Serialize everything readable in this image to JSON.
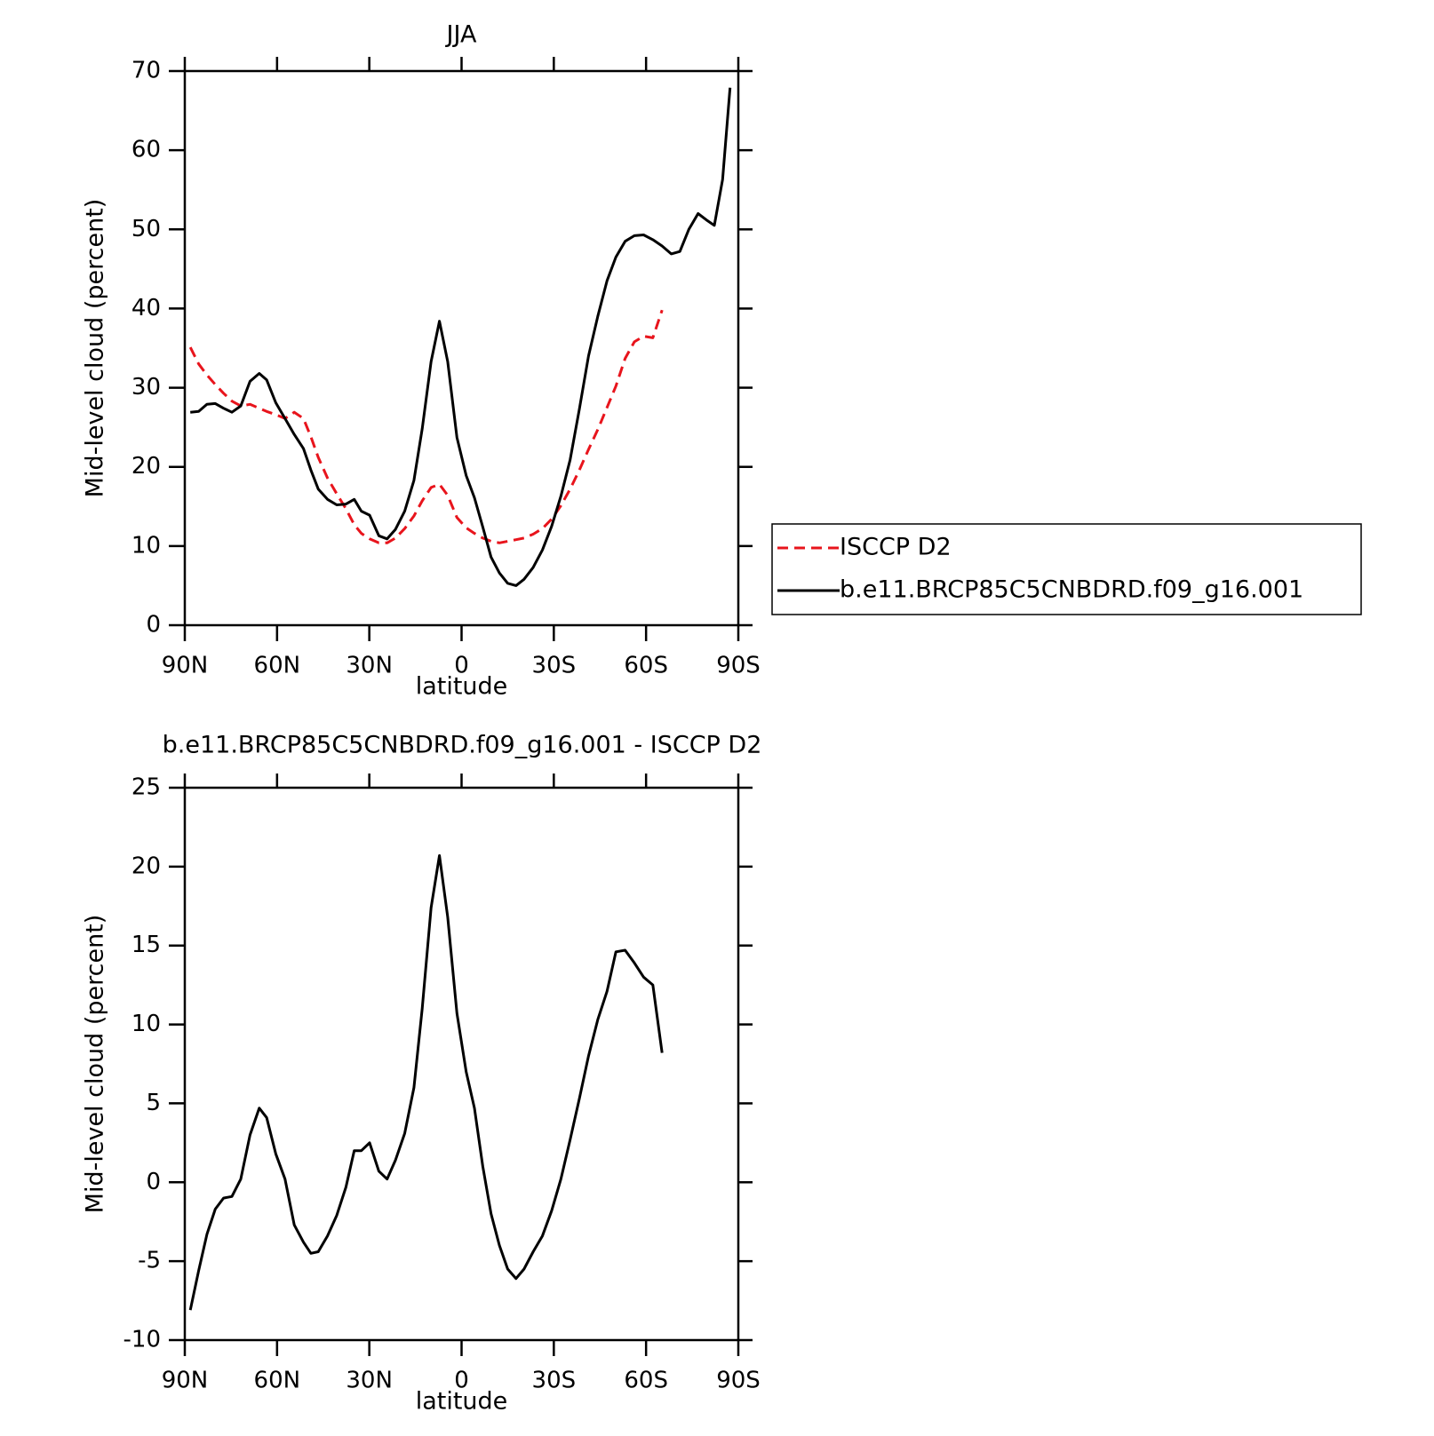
{
  "chart_data": [
    {
      "type": "line",
      "title": "JJA",
      "xlabel": "latitude",
      "ylabel": "Mid-level cloud (percent)",
      "x": [
        88.2,
        85.5,
        82.8,
        80.1,
        77.4,
        74.7,
        71.8,
        68.8,
        65.8,
        63.4,
        60.4,
        57.4,
        54.4,
        51.4,
        49.0,
        46.6,
        43.6,
        40.6,
        37.6,
        34.9,
        32.6,
        29.9,
        26.9,
        24.2,
        21.5,
        18.5,
        15.5,
        12.8,
        9.9,
        7.2,
        4.5,
        1.5,
        -1.5,
        -4.2,
        -6.9,
        -9.6,
        -12.3,
        -15.0,
        -17.7,
        -20.3,
        -23.3,
        -26.3,
        -29.3,
        -32.3,
        -35.3,
        -38.3,
        -41.3,
        -44.3,
        -47.3,
        -50.2,
        -53.2,
        -56.2,
        -59.2,
        -62.2,
        -65.2,
        -68.2,
        -71.0,
        -73.9,
        -76.9,
        -79.6,
        -82.2,
        -84.9,
        -87.3
      ],
      "series": [
        {
          "name": "ISCCP D2",
          "color": "#e8141c",
          "line_style": "dashed",
          "values": [
            35.1,
            33.0,
            31.6,
            30.4,
            29.3,
            28.3,
            27.7,
            27.9,
            27.4,
            27.0,
            26.6,
            26.1,
            26.9,
            26.1,
            23.8,
            21.2,
            18.6,
            16.6,
            14.7,
            12.7,
            11.6,
            10.9,
            10.4,
            10.4,
            11.0,
            12.2,
            13.8,
            15.7,
            17.4,
            17.8,
            16.4,
            13.6,
            12.3,
            11.6,
            11.0,
            10.6,
            10.4,
            10.6,
            10.8,
            11.0,
            11.5,
            12.2,
            13.4,
            15.1,
            17.2,
            19.6,
            22.2,
            24.7,
            27.5,
            30.2,
            33.7,
            35.8,
            36.5,
            36.3,
            39.8,
            null,
            null,
            null,
            null,
            null,
            null,
            null,
            null
          ]
        },
        {
          "name": "b.e11.BRCP85C5CNBDRD.f09_g16.001",
          "color": "#000000",
          "line_style": "solid",
          "values": [
            26.9,
            27.0,
            27.9,
            28.0,
            27.4,
            26.9,
            27.7,
            30.8,
            31.8,
            31.0,
            28.1,
            26.1,
            24.1,
            22.3,
            19.6,
            17.2,
            15.9,
            15.2,
            15.3,
            15.9,
            14.4,
            13.9,
            11.3,
            10.9,
            12.1,
            14.4,
            18.3,
            24.8,
            33.3,
            38.4,
            33.3,
            23.7,
            18.9,
            16.1,
            12.4,
            8.6,
            6.6,
            5.3,
            5.0,
            5.8,
            7.3,
            9.5,
            12.5,
            16.3,
            20.9,
            27.3,
            34.0,
            39.0,
            43.5,
            46.5,
            48.5,
            49.2,
            49.3,
            48.7,
            47.9,
            46.9,
            47.2,
            50.0,
            52.0,
            51.2,
            50.5,
            56.3,
            67.9
          ]
        }
      ],
      "xlim": [
        90,
        -90
      ],
      "xticks": [
        {
          "value": 90,
          "label": "90N"
        },
        {
          "value": 60,
          "label": "60N"
        },
        {
          "value": 30,
          "label": "30N"
        },
        0,
        {
          "value": -30,
          "label": "30S"
        },
        {
          "value": -60,
          "label": "60S"
        },
        {
          "value": -90,
          "label": "90S"
        }
      ],
      "ylim": [
        0,
        70
      ],
      "yticks": [
        0,
        10,
        20,
        30,
        40,
        50,
        60,
        70
      ],
      "grid": false,
      "legend": "right"
    },
    {
      "type": "line",
      "title": "b.e11.BRCP85C5CNBDRD.f09_g16.001 - ISCCP D2",
      "xlabel": "latitude",
      "ylabel": "Mid-level cloud (percent)",
      "x": [
        88.2,
        85.5,
        82.8,
        80.1,
        77.4,
        74.7,
        71.8,
        68.8,
        65.8,
        63.4,
        60.4,
        57.4,
        54.4,
        51.4,
        49.0,
        46.6,
        43.6,
        40.6,
        37.6,
        34.9,
        32.6,
        29.9,
        26.9,
        24.2,
        21.5,
        18.5,
        15.5,
        12.8,
        9.9,
        7.2,
        4.5,
        1.5,
        -1.5,
        -4.2,
        -6.9,
        -9.6,
        -12.3,
        -15.0,
        -17.7,
        -20.3,
        -23.3,
        -26.3,
        -29.3,
        -32.3,
        -35.3,
        -38.3,
        -41.3,
        -44.3,
        -47.3,
        -50.2,
        -53.2,
        -56.2,
        -59.2,
        -62.2,
        -65.2
      ],
      "series": [
        {
          "color": "#000000",
          "line_style": "solid",
          "values": [
            -8.1,
            -5.6,
            -3.3,
            -1.7,
            -1.0,
            -0.9,
            0.2,
            3.0,
            4.7,
            4.1,
            1.8,
            0.2,
            -2.7,
            -3.8,
            -4.5,
            -4.4,
            -3.4,
            -2.1,
            -0.3,
            2.0,
            2.0,
            2.5,
            0.7,
            0.2,
            1.4,
            3.1,
            6.0,
            11.0,
            17.4,
            20.7,
            16.8,
            10.7,
            7.0,
            4.7,
            1.0,
            -2.0,
            -4.0,
            -5.5,
            -6.1,
            -5.5,
            -4.4,
            -3.4,
            -1.8,
            0.2,
            2.7,
            5.3,
            8.0,
            10.3,
            12.1,
            14.6,
            14.7,
            13.9,
            13.0,
            12.5,
            8.2
          ]
        }
      ],
      "xlim": [
        90,
        -90
      ],
      "xticks": [
        {
          "value": 90,
          "label": "90N"
        },
        {
          "value": 60,
          "label": "60N"
        },
        {
          "value": 30,
          "label": "30N"
        },
        0,
        {
          "value": -30,
          "label": "30S"
        },
        {
          "value": -60,
          "label": "60S"
        },
        {
          "value": -90,
          "label": "90S"
        }
      ],
      "ylim": [
        -10,
        25
      ],
      "yticks": [
        -10,
        -5,
        0,
        5,
        10,
        15,
        20,
        25
      ],
      "grid": false
    }
  ]
}
